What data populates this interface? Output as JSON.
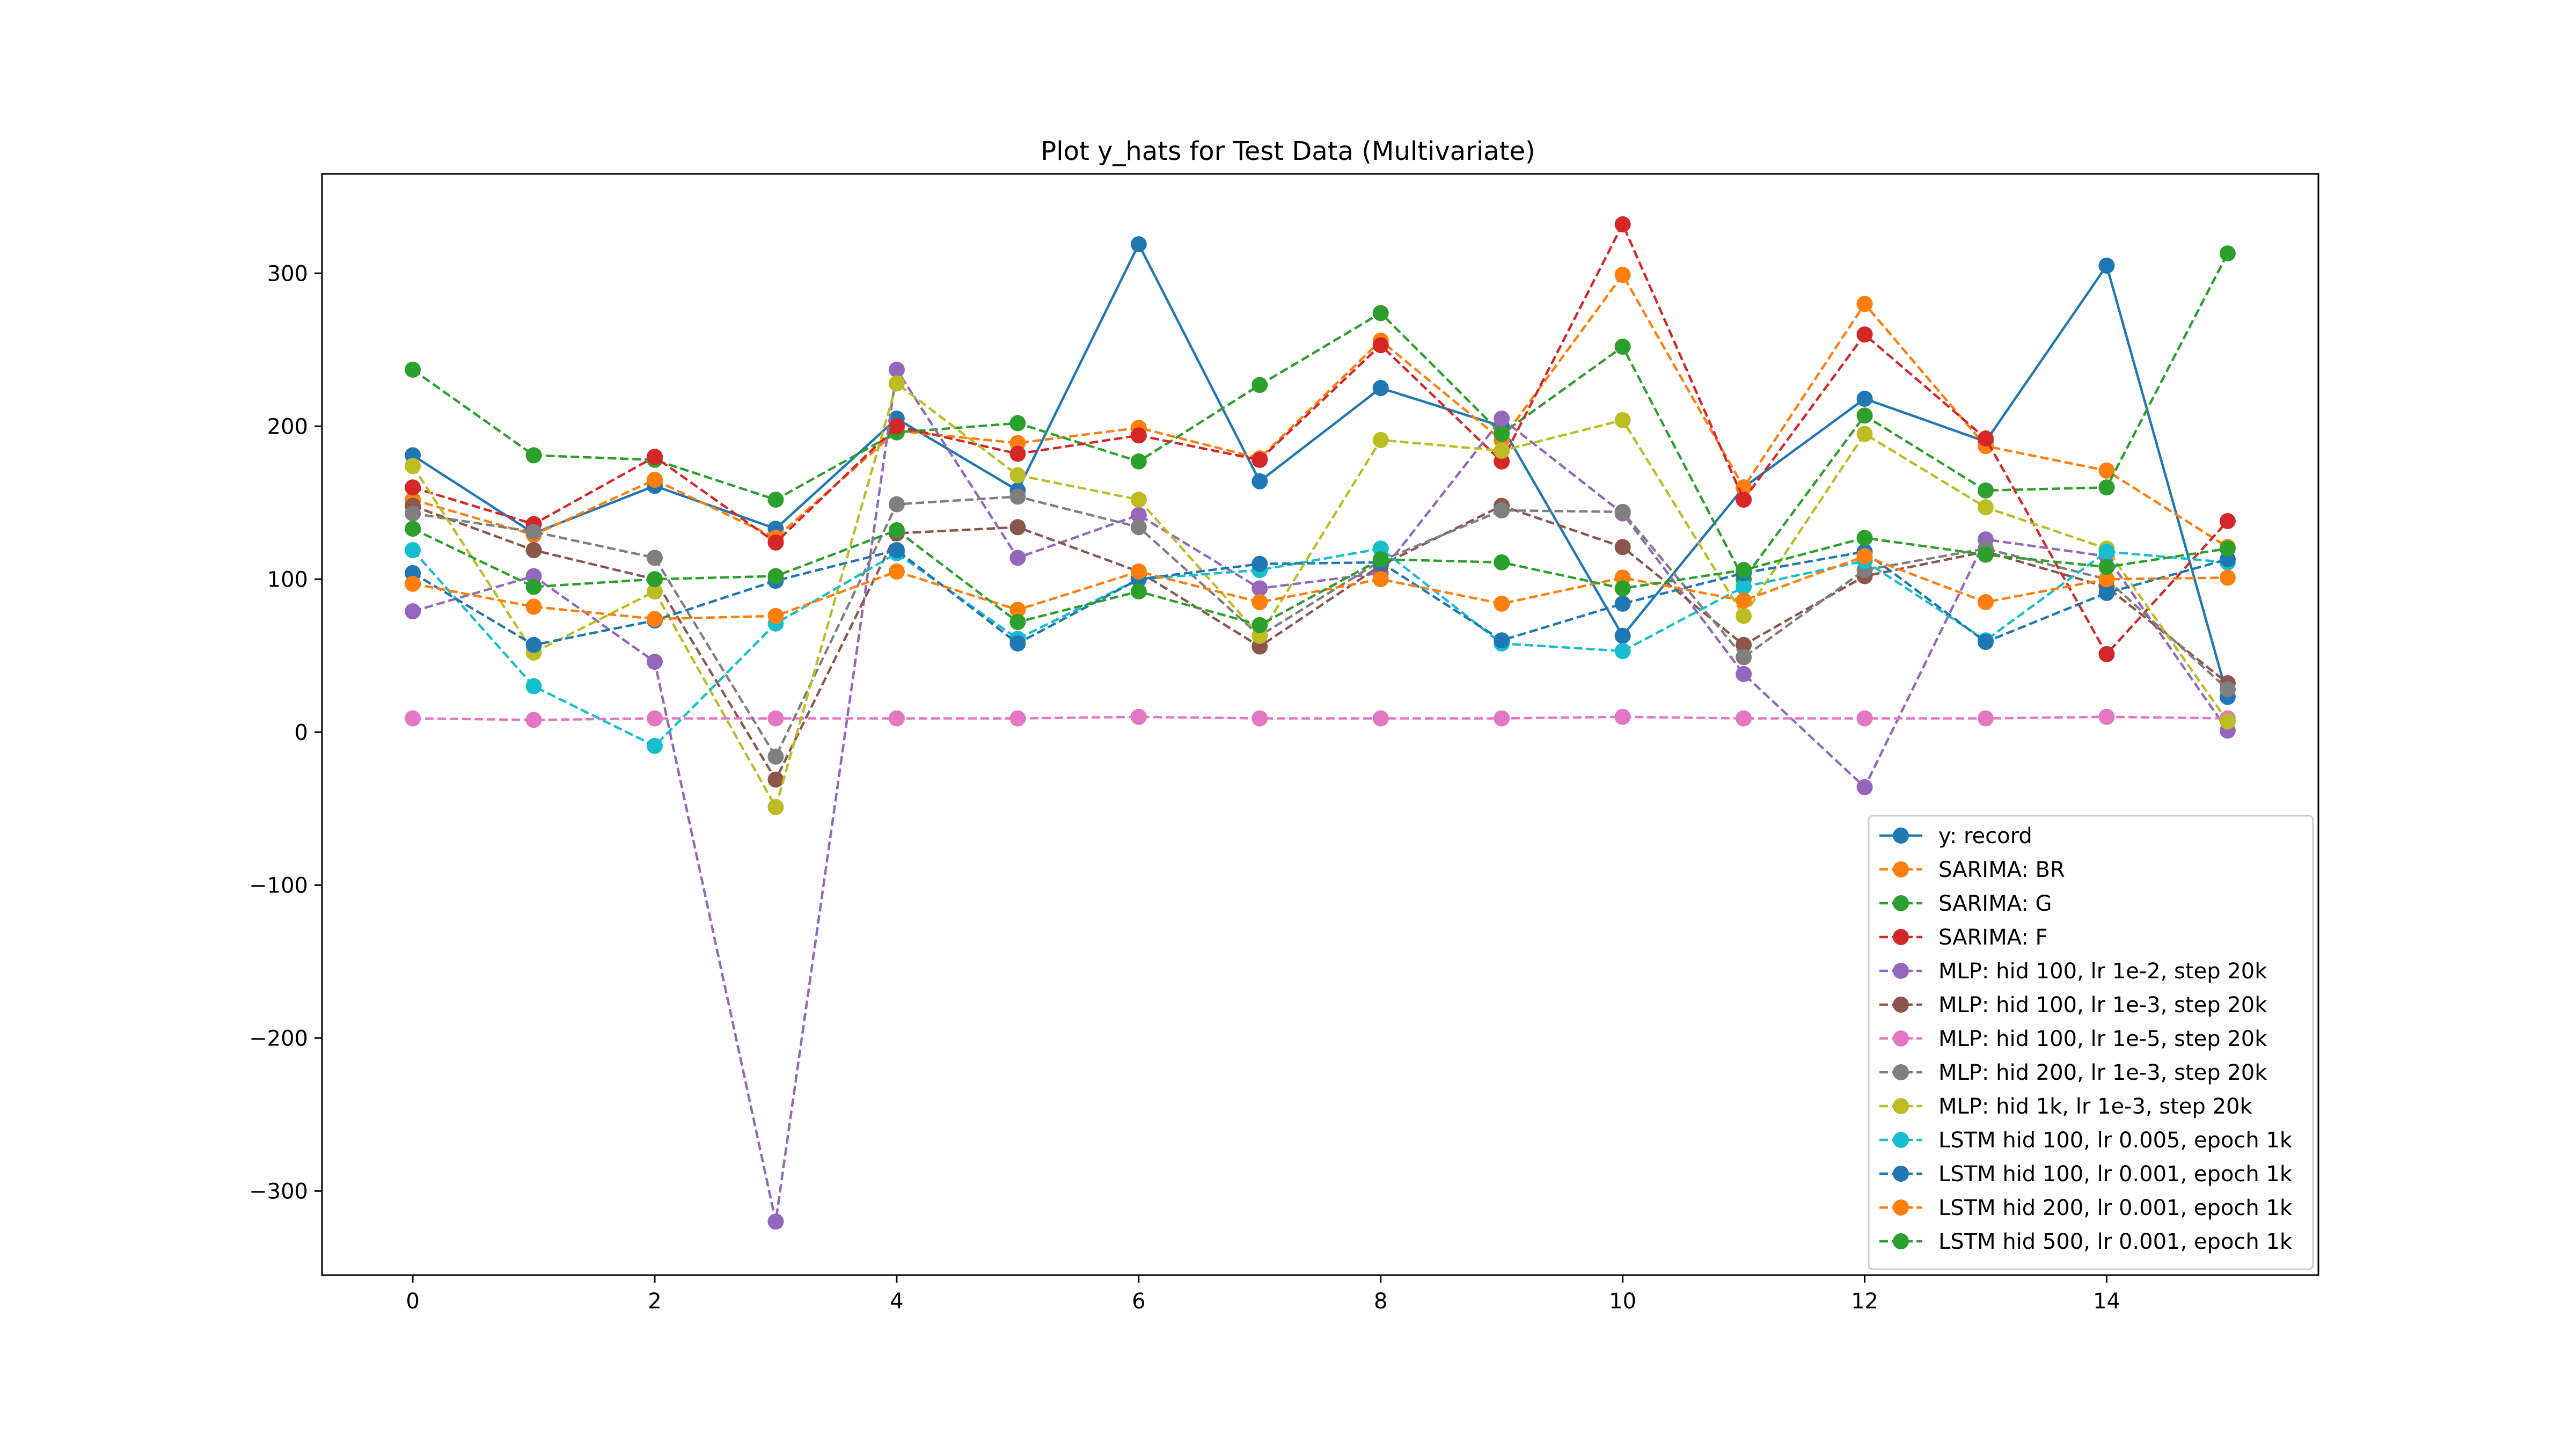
{
  "chart_data": {
    "type": "line",
    "title": "Plot y_hats for Test Data (Multivariate)",
    "xlabel": "",
    "ylabel": "",
    "xlim": [
      -0.75,
      15.75
    ],
    "ylim": [
      -355,
      365
    ],
    "xticks": [
      0,
      2,
      4,
      6,
      8,
      10,
      12,
      14
    ],
    "yticks": [
      -300,
      -200,
      -100,
      0,
      100,
      200,
      300
    ],
    "xtick_labels": [
      "0",
      "2",
      "4",
      "6",
      "8",
      "10",
      "12",
      "14"
    ],
    "ytick_labels": [
      "−300",
      "−200",
      "−100",
      "0",
      "100",
      "200",
      "300"
    ],
    "grid": false,
    "legend_position": "lower right",
    "x": [
      0,
      1,
      2,
      3,
      4,
      5,
      6,
      7,
      8,
      9,
      10,
      11,
      12,
      13,
      14,
      15
    ],
    "series": [
      {
        "name": "y: record",
        "color": "#1f77b4",
        "dashed": false,
        "values": [
          181,
          130,
          161,
          133,
          205,
          158,
          319,
          164,
          225,
          200,
          63,
          160,
          218,
          190,
          305,
          23
        ]
      },
      {
        "name": "SARIMA: BR",
        "color": "#ff7f0e",
        "dashed": true,
        "values": [
          152,
          129,
          165,
          127,
          197,
          189,
          199,
          179,
          256,
          191,
          299,
          160,
          280,
          187,
          171,
          121
        ]
      },
      {
        "name": "SARIMA: G",
        "color": "#2ca02c",
        "dashed": true,
        "values": [
          237,
          181,
          178,
          152,
          196,
          202,
          177,
          227,
          274,
          195,
          252,
          100,
          207,
          158,
          160,
          313
        ]
      },
      {
        "name": "SARIMA: F",
        "color": "#d62728",
        "dashed": true,
        "values": [
          160,
          136,
          180,
          124,
          200,
          182,
          194,
          178,
          253,
          177,
          332,
          152,
          260,
          192,
          51,
          138
        ]
      },
      {
        "name": "MLP: hid 100, lr 1e-2, step 20k",
        "color": "#9467bd",
        "dashed": true,
        "values": [
          79,
          102,
          46,
          -320,
          237,
          114,
          142,
          94,
          104,
          205,
          143,
          38,
          -36,
          126,
          115,
          1
        ]
      },
      {
        "name": "MLP: hid 100, lr 1e-3, step 20k",
        "color": "#8c564b",
        "dashed": true,
        "values": [
          148,
          119,
          100,
          -31,
          130,
          134,
          105,
          56,
          109,
          148,
          121,
          57,
          102,
          118,
          95,
          32
        ]
      },
      {
        "name": "MLP: hid 100, lr 1e-5, step 20k",
        "color": "#e377c2",
        "dashed": true,
        "values": [
          9,
          8,
          9,
          9,
          9,
          9,
          10,
          9,
          9,
          9,
          10,
          9,
          9,
          9,
          10,
          9
        ]
      },
      {
        "name": "MLP: hid 200, lr 1e-3, step 20k",
        "color": "#7f7f7f",
        "dashed": true,
        "values": [
          143,
          131,
          114,
          -16,
          149,
          154,
          134,
          63,
          112,
          145,
          144,
          49,
          106,
          120,
          100,
          28
        ]
      },
      {
        "name": "MLP: hid 1k, lr 1e-3, step 20k",
        "color": "#bcbd22",
        "dashed": true,
        "values": [
          174,
          52,
          92,
          -49,
          228,
          168,
          152,
          63,
          191,
          184,
          204,
          76,
          195,
          147,
          120,
          7
        ]
      },
      {
        "name": "LSTM hid 100, lr 0.005, epoch 1k",
        "color": "#17becf",
        "dashed": true,
        "values": [
          119,
          30,
          -9,
          71,
          117,
          61,
          100,
          106,
          120,
          58,
          53,
          95,
          112,
          60,
          118,
          111
        ]
      },
      {
        "name": "LSTM hid 100, lr 0.001, epoch 1k",
        "color": "#1f77b4",
        "dashed": true,
        "values": [
          104,
          57,
          73,
          99,
          119,
          58,
          100,
          110,
          111,
          60,
          84,
          104,
          118,
          59,
          91,
          113
        ]
      },
      {
        "name": "LSTM hid 200, lr 0.001, epoch 1k",
        "color": "#ff7f0e",
        "dashed": true,
        "values": [
          97,
          82,
          74,
          76,
          105,
          80,
          105,
          85,
          100,
          84,
          101,
          86,
          115,
          85,
          100,
          101
        ]
      },
      {
        "name": "LSTM hid 500, lr 0.001, epoch 1k",
        "color": "#2ca02c",
        "dashed": true,
        "values": [
          133,
          95,
          100,
          102,
          132,
          72,
          92,
          70,
          113,
          111,
          94,
          106,
          127,
          116,
          108,
          120
        ]
      }
    ]
  }
}
